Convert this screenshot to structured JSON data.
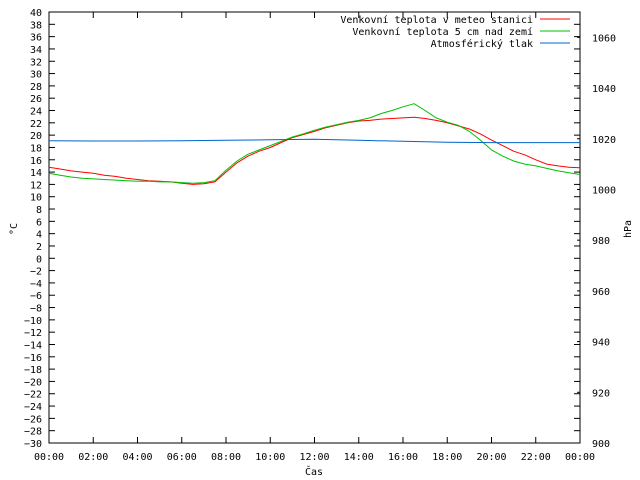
{
  "chart_data": {
    "type": "line",
    "xlabel": "Čas",
    "ylabel_left": "°C",
    "ylabel_right": "hPa",
    "x_ticks": [
      "00:00",
      "02:00",
      "04:00",
      "06:00",
      "08:00",
      "10:00",
      "12:00",
      "14:00",
      "16:00",
      "18:00",
      "20:00",
      "22:00",
      "00:00"
    ],
    "x_range_hours": [
      0,
      24
    ],
    "ylim_left": [
      -30,
      40
    ],
    "y_left_step": 2,
    "ylim_right": [
      900,
      1070
    ],
    "y_right_ticks": [
      900,
      920,
      940,
      960,
      980,
      1000,
      1020,
      1040,
      1060
    ],
    "grid": false,
    "legend_position": "top-right",
    "series": [
      {
        "name": "Venkovní teplota v meteo stanici",
        "axis": "left",
        "color": "#ff0000",
        "points": [
          [
            0,
            14.8
          ],
          [
            0.5,
            14.5
          ],
          [
            1,
            14.2
          ],
          [
            1.5,
            14.0
          ],
          [
            2,
            13.8
          ],
          [
            2.5,
            13.5
          ],
          [
            3,
            13.3
          ],
          [
            3.5,
            13.0
          ],
          [
            4,
            12.8
          ],
          [
            4.5,
            12.6
          ],
          [
            5,
            12.5
          ],
          [
            5.5,
            12.4
          ],
          [
            6,
            12.2
          ],
          [
            6.5,
            12.0
          ],
          [
            7,
            12.1
          ],
          [
            7.5,
            12.4
          ],
          [
            8,
            14.0
          ],
          [
            8.5,
            15.5
          ],
          [
            9,
            16.6
          ],
          [
            9.5,
            17.4
          ],
          [
            10,
            18.0
          ],
          [
            10.5,
            18.8
          ],
          [
            11,
            19.6
          ],
          [
            11.5,
            20.1
          ],
          [
            12,
            20.6
          ],
          [
            12.5,
            21.2
          ],
          [
            13,
            21.6
          ],
          [
            13.5,
            22.0
          ],
          [
            14,
            22.3
          ],
          [
            14.5,
            22.4
          ],
          [
            15,
            22.6
          ],
          [
            15.5,
            22.7
          ],
          [
            16,
            22.8
          ],
          [
            16.5,
            22.9
          ],
          [
            17,
            22.7
          ],
          [
            17.5,
            22.4
          ],
          [
            18,
            22.0
          ],
          [
            18.5,
            21.5
          ],
          [
            19,
            21.0
          ],
          [
            19.5,
            20.2
          ],
          [
            20,
            19.2
          ],
          [
            20.5,
            18.3
          ],
          [
            21,
            17.4
          ],
          [
            21.5,
            16.8
          ],
          [
            22,
            16.0
          ],
          [
            22.5,
            15.3
          ],
          [
            23,
            15.0
          ],
          [
            23.5,
            14.8
          ],
          [
            24,
            14.7
          ]
        ]
      },
      {
        "name": "Venkovní teplota 5 cm nad zemí",
        "axis": "left",
        "color": "#00c000",
        "points": [
          [
            0,
            13.8
          ],
          [
            0.5,
            13.5
          ],
          [
            1,
            13.2
          ],
          [
            1.5,
            13.0
          ],
          [
            2,
            12.9
          ],
          [
            2.5,
            12.8
          ],
          [
            3,
            12.7
          ],
          [
            3.5,
            12.6
          ],
          [
            4,
            12.5
          ],
          [
            4.5,
            12.5
          ],
          [
            5,
            12.4
          ],
          [
            5.5,
            12.4
          ],
          [
            6,
            12.3
          ],
          [
            6.5,
            12.2
          ],
          [
            7,
            12.3
          ],
          [
            7.5,
            12.6
          ],
          [
            8,
            14.3
          ],
          [
            8.5,
            15.8
          ],
          [
            9,
            16.9
          ],
          [
            9.5,
            17.6
          ],
          [
            10,
            18.3
          ],
          [
            10.5,
            19.0
          ],
          [
            11,
            19.7
          ],
          [
            11.5,
            20.2
          ],
          [
            12,
            20.8
          ],
          [
            12.5,
            21.3
          ],
          [
            13,
            21.7
          ],
          [
            13.5,
            22.1
          ],
          [
            14,
            22.4
          ],
          [
            14.5,
            22.8
          ],
          [
            15,
            23.5
          ],
          [
            15.5,
            24.0
          ],
          [
            16,
            24.6
          ],
          [
            16.5,
            25.1
          ],
          [
            17,
            24.0
          ],
          [
            17.5,
            22.8
          ],
          [
            18,
            22.1
          ],
          [
            18.5,
            21.6
          ],
          [
            19,
            20.6
          ],
          [
            19.5,
            19.2
          ],
          [
            20,
            17.6
          ],
          [
            20.5,
            16.6
          ],
          [
            21,
            15.8
          ],
          [
            21.5,
            15.3
          ],
          [
            22,
            15.0
          ],
          [
            22.5,
            14.6
          ],
          [
            23,
            14.2
          ],
          [
            23.5,
            13.9
          ],
          [
            24,
            13.6
          ]
        ]
      },
      {
        "name": "Atmosférický tlak",
        "axis": "right",
        "color": "#0066cc",
        "points": [
          [
            0,
            1019.2
          ],
          [
            2,
            1019.1
          ],
          [
            4,
            1019.1
          ],
          [
            6,
            1019.2
          ],
          [
            8,
            1019.4
          ],
          [
            10,
            1019.6
          ],
          [
            12,
            1019.8
          ],
          [
            14,
            1019.4
          ],
          [
            16,
            1019.0
          ],
          [
            18,
            1018.6
          ],
          [
            20,
            1018.5
          ],
          [
            22,
            1018.5
          ],
          [
            24,
            1018.5
          ]
        ]
      }
    ]
  }
}
